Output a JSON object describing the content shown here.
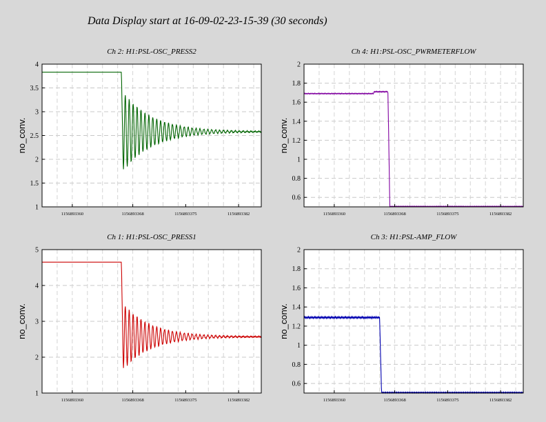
{
  "page": {
    "title": "Data Display start at 16-09-02-23-15-39 (30 seconds)"
  },
  "chart_data": [
    {
      "type": "line",
      "title": "Ch 2: H1:PSL-OSC_PRESS2",
      "ylabel": "no_conv.",
      "color": "#006400",
      "xlim": [
        1156893356,
        1156893385
      ],
      "ylim": [
        1,
        4
      ],
      "yticks": [
        1,
        1.5,
        2,
        2.5,
        3,
        3.5,
        4
      ],
      "xtick_labels": [
        {
          "value": 1156893360,
          "label": "1156893360"
        },
        {
          "value": 1156893368,
          "label": "1156893368"
        },
        {
          "value": 1156893375,
          "label": "1156893375"
        },
        {
          "value": 1156893382,
          "label": "1156893382"
        }
      ],
      "grid": true,
      "step": {
        "t0": 1156893366.5,
        "before": 3.83,
        "after": 2.58,
        "dip": 1.75,
        "peak": 3.32,
        "decay": 0.16,
        "period": 0.52,
        "tail_jitter": 0.01
      }
    },
    {
      "type": "line",
      "title": "Ch 4: H1:PSL-OSC_PWRMETERFLOW",
      "ylabel": "no_conv.",
      "color": "#8000a0",
      "xlim": [
        1156893356,
        1156893385
      ],
      "ylim": [
        0.5,
        2
      ],
      "yticks": [
        0.6,
        0.8,
        1,
        1.2,
        1.4,
        1.6,
        1.8,
        2
      ],
      "xtick_labels": [
        {
          "value": 1156893360,
          "label": "1156893360"
        },
        {
          "value": 1156893368,
          "label": "1156893368"
        },
        {
          "value": 1156893375,
          "label": "1156893375"
        },
        {
          "value": 1156893382,
          "label": "1156893382"
        }
      ],
      "grid": true,
      "drop": {
        "t0": 1156893367.2,
        "before": 1.69,
        "bump": 1.71,
        "after": 0.505,
        "ripple": 0.004
      }
    },
    {
      "type": "line",
      "title": "Ch 1: H1:PSL-OSC_PRESS1",
      "ylabel": "no_conv.",
      "color": "#cc0000",
      "xlim": [
        1156893356,
        1156893385
      ],
      "ylim": [
        1,
        5
      ],
      "yticks": [
        1,
        2,
        3,
        4,
        5
      ],
      "xtick_labels": [
        {
          "value": 1156893360,
          "label": "1156893360"
        },
        {
          "value": 1156893368,
          "label": "1156893368"
        },
        {
          "value": 1156893375,
          "label": "1156893375"
        },
        {
          "value": 1156893382,
          "label": "1156893382"
        }
      ],
      "grid": true,
      "step": {
        "t0": 1156893366.5,
        "before": 4.65,
        "after": 2.57,
        "dip": 1.65,
        "peak": 3.2,
        "decay": 0.17,
        "period": 0.52,
        "tail_jitter": 0.015
      }
    },
    {
      "type": "line",
      "title": "Ch 3: H1:PSL-AMP_FLOW",
      "ylabel": "no_conv.",
      "color": "#0000b0",
      "xlim": [
        1156893356,
        1156893385
      ],
      "ylim": [
        0.5,
        2
      ],
      "yticks": [
        0.6,
        0.8,
        1,
        1.2,
        1.4,
        1.6,
        1.8,
        2
      ],
      "xtick_labels": [
        {
          "value": 1156893360,
          "label": "1156893360"
        },
        {
          "value": 1156893368,
          "label": "1156893368"
        },
        {
          "value": 1156893375,
          "label": "1156893375"
        },
        {
          "value": 1156893382,
          "label": "1156893382"
        }
      ],
      "grid": true,
      "drop": {
        "t0": 1156893366.1,
        "before": 1.29,
        "bump": 1.29,
        "after": 0.505,
        "ripple": 0.008
      }
    }
  ]
}
